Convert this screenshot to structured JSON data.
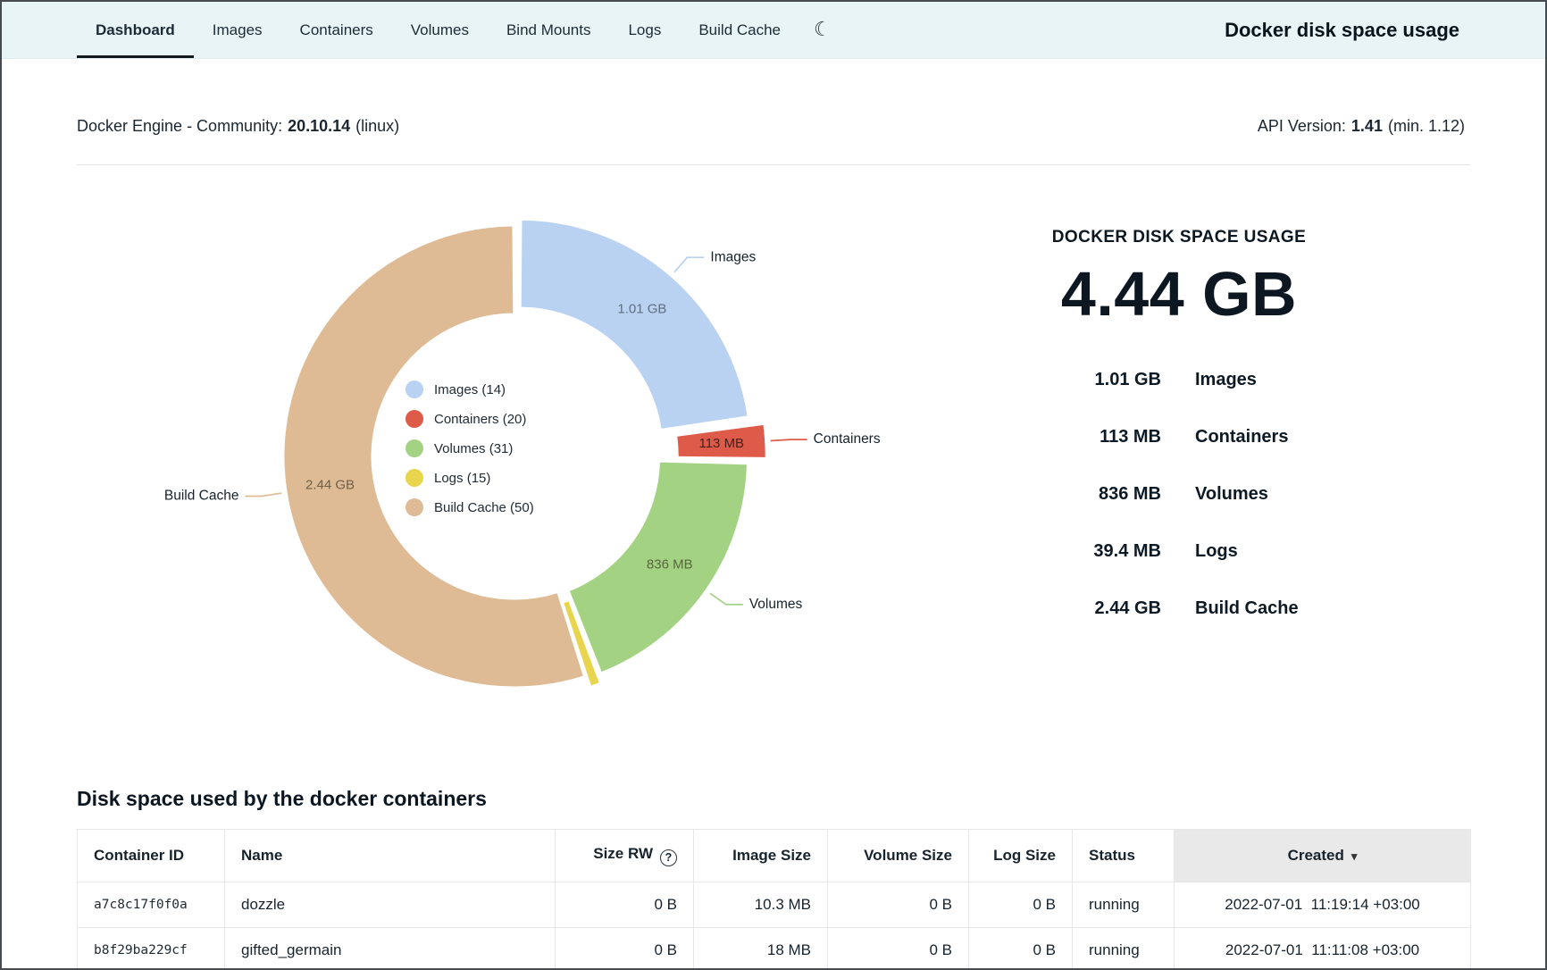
{
  "nav": {
    "tabs": [
      {
        "label": "Dashboard",
        "active": true
      },
      {
        "label": "Images",
        "active": false
      },
      {
        "label": "Containers",
        "active": false
      },
      {
        "label": "Volumes",
        "active": false
      },
      {
        "label": "Bind Mounts",
        "active": false
      },
      {
        "label": "Logs",
        "active": false
      },
      {
        "label": "Build Cache",
        "active": false
      }
    ],
    "title": "Docker disk space usage"
  },
  "icons": {
    "theme_toggle": "☾",
    "help": "?",
    "sort_desc": "▾"
  },
  "engine_info": {
    "prefix": "Docker Engine - Community:",
    "version": "20.10.14",
    "suffix": "(linux)",
    "api_prefix": "API Version:",
    "api_version": "1.41",
    "api_suffix": "(min. 1.12)"
  },
  "chart_data": {
    "type": "pie",
    "title": "",
    "hole": 0.62,
    "legend_position": "center",
    "total_mb": 4438.4,
    "total_label": "4.44 GB",
    "slices": [
      {
        "label": "Images",
        "count": 14,
        "value_mb": 1010,
        "display": "1.01 GB",
        "color": "#b9d2f1",
        "value_color": "#5f6f81",
        "pull": 0.035,
        "outside_label": true,
        "inside_label": true
      },
      {
        "label": "Containers",
        "count": 20,
        "value_mb": 113,
        "display": "113 MB",
        "color": "#de5b4a",
        "value_color": "#47201a",
        "pull": 0.09,
        "outside_label": true,
        "inside_label": true
      },
      {
        "label": "Volumes",
        "count": 31,
        "value_mb": 836,
        "display": "836 MB",
        "color": "#a3d282",
        "value_color": "#59663e",
        "pull": 0.012,
        "outside_label": true,
        "inside_label": true
      },
      {
        "label": "Logs",
        "count": 15,
        "value_mb": 39.4,
        "display": "39.4 MB",
        "color": "#e8d54d",
        "value_color": "#6b6022",
        "pull": 0.05,
        "outside_label": false,
        "inside_label": false
      },
      {
        "label": "Build Cache",
        "count": 50,
        "value_mb": 2440,
        "display": "2.44 GB",
        "color": "#dfbb95",
        "value_color": "#716048",
        "pull": 0,
        "outside_label": true,
        "inside_label": true
      }
    ]
  },
  "summary": {
    "heading": "DOCKER DISK SPACE USAGE",
    "total": "4.44 GB",
    "rows": [
      {
        "value": "1.01 GB",
        "label": "Images"
      },
      {
        "value": "113 MB",
        "label": "Containers"
      },
      {
        "value": "836 MB",
        "label": "Volumes"
      },
      {
        "value": "39.4 MB",
        "label": "Logs"
      },
      {
        "value": "2.44 GB",
        "label": "Build Cache"
      }
    ]
  },
  "containers_section": {
    "heading": "Disk space used by the docker containers",
    "table": {
      "columns": [
        {
          "label": "Container ID"
        },
        {
          "label": "Name"
        },
        {
          "label": "Size RW",
          "help": true
        },
        {
          "label": "Image Size"
        },
        {
          "label": "Volume Size"
        },
        {
          "label": "Log Size"
        },
        {
          "label": "Status"
        },
        {
          "label": "Created",
          "sorted": "desc"
        }
      ],
      "rows": [
        [
          "a7c8c17f0f0a",
          "dozzle",
          "0 B",
          "10.3 MB",
          "0 B",
          "0 B",
          "running",
          "2022-07-01  11:19:14 +03:00"
        ],
        [
          "b8f29ba229cf",
          "gifted_germain",
          "0 B",
          "18 MB",
          "0 B",
          "0 B",
          "running",
          "2022-07-01  11:11:08 +03:00"
        ]
      ]
    }
  }
}
